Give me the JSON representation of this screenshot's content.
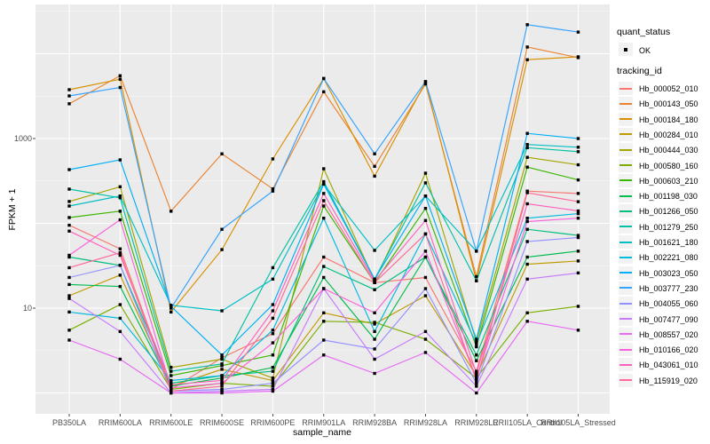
{
  "axes": {
    "y_title": "FPKM + 1",
    "x_title": "sample_name",
    "y_ticks": [
      {
        "label": "1000",
        "value": 1000
      },
      {
        "label": "10",
        "value": 10
      }
    ]
  },
  "legend": {
    "quant_status_title": "quant_status",
    "quant_status_items": [
      {
        "label": "OK",
        "marker": "black-point"
      }
    ],
    "tracking_title": "tracking_id"
  },
  "style": {
    "panel_bg": "#EBEBEB",
    "grid_color": "#FFFFFF",
    "tick_color": "#333333",
    "point_color": "#000000",
    "legend_key_bg": "#F2F2F2"
  },
  "chart_data": {
    "type": "line",
    "title": "",
    "xlabel": "sample_name",
    "ylabel": "FPKM + 1",
    "yscale": "log10",
    "ylim": [
      1,
      30000
    ],
    "grid": "white major+minor on gray panel",
    "legend_position": "right",
    "marker": "small black square on every point",
    "categories": [
      "PB350LA",
      "RRIM600LA",
      "RRIM600LE",
      "RRIM600SE",
      "RRIM600PE",
      "RRIM901LA",
      "RRIM928BA",
      "RRIM928LA",
      "RRIM928LE",
      "RRII105LA_Control",
      "RRII105LA_Stressed"
    ],
    "series": [
      {
        "name": "Hb_000052_010",
        "color": "#F8766D",
        "values": [
          95,
          50,
          1.1,
          2.6,
          5.0,
          40,
          20,
          23,
          1.8,
          240,
          225
        ]
      },
      {
        "name": "Hb_000143_050",
        "color": "#EA8331",
        "values": [
          2570,
          5500,
          139,
          660,
          255,
          3560,
          470,
          4400,
          23.5,
          12000,
          9000
        ]
      },
      {
        "name": "Hb_000184_180",
        "color": "#D89000",
        "values": [
          3765,
          5000,
          9.0,
          49,
          575,
          5100,
          360,
          4600,
          21,
          8500,
          9200
        ]
      },
      {
        "name": "Hb_000284_010",
        "color": "#C09B00",
        "values": [
          14,
          24.5,
          1.2,
          1.9,
          1.4,
          8.8,
          6.5,
          14,
          1.6,
          33,
          36
        ]
      },
      {
        "name": "Hb_000444_030",
        "color": "#A3A500",
        "values": [
          181,
          270,
          2.0,
          2.5,
          1.5,
          440,
          21,
          390,
          4.0,
          600,
          490
        ]
      },
      {
        "name": "Hb_000580_160",
        "color": "#7CAE00",
        "values": [
          5.5,
          11,
          1.1,
          1.3,
          1.2,
          7.0,
          6.8,
          4.3,
          1.5,
          8.8,
          10.5
        ]
      },
      {
        "name": "Hb_000603_210",
        "color": "#39B600",
        "values": [
          117,
          139,
          1.6,
          2.1,
          2.8,
          160,
          20,
          150,
          3.5,
          460,
          325
        ]
      },
      {
        "name": "Hb_001198_030",
        "color": "#00BB4E",
        "values": [
          19,
          18,
          1.2,
          1.5,
          2.0,
          23,
          4.3,
          40,
          2.4,
          40,
          47
        ]
      },
      {
        "name": "Hb_001266_050",
        "color": "#00BF7D",
        "values": [
          40,
          32,
          1.3,
          1.6,
          1.8,
          31,
          16.5,
          40,
          2.8,
          85,
          72
        ]
      },
      {
        "name": "Hb_001279_250",
        "color": "#00C1A3",
        "values": [
          253,
          200,
          1.8,
          2.2,
          30,
          310,
          22,
          300,
          21,
          780,
          700
        ]
      },
      {
        "name": "Hb_001621_180",
        "color": "#00BFC4",
        "values": [
          160,
          210,
          10.8,
          9.3,
          22,
          290,
          48,
          210,
          47,
          850,
          790
        ]
      },
      {
        "name": "Hb_002221_080",
        "color": "#00BAE0",
        "values": [
          9.0,
          7.6,
          1.4,
          1.6,
          5.5,
          115,
          5.3,
          75,
          3.8,
          115,
          130
        ]
      },
      {
        "name": "Hb_003023_050",
        "color": "#00B0F6",
        "values": [
          430,
          560,
          10.5,
          2.8,
          11,
          290,
          22,
          210,
          4.3,
          1150,
          1000
        ]
      },
      {
        "name": "Hb_003777_230",
        "color": "#35A2FF",
        "values": [
          3180,
          4000,
          10.0,
          85,
          240,
          5100,
          660,
          4700,
          47,
          22000,
          18000
        ]
      },
      {
        "name": "Hb_004055_060",
        "color": "#9590FF",
        "values": [
          23,
          32,
          1.05,
          1.1,
          1.3,
          4.2,
          3.3,
          17,
          1.3,
          61,
          68
        ]
      },
      {
        "name": "Hb_007477_090",
        "color": "#C77CFF",
        "values": [
          13,
          5.3,
          1.0,
          1.05,
          1.1,
          17,
          2.5,
          5.3,
          1.2,
          22,
          26
        ]
      },
      {
        "name": "Hb_008557_020",
        "color": "#E76BF3",
        "values": [
          4.2,
          2.5,
          1.0,
          1.0,
          1.05,
          2.8,
          1.7,
          3.0,
          1.0,
          7.0,
          5.5
        ]
      },
      {
        "name": "Hb_010166_020",
        "color": "#FA62DB",
        "values": [
          42,
          110,
          1.15,
          1.3,
          3.9,
          17,
          8.8,
          47,
          1.5,
          105,
          115
        ]
      },
      {
        "name": "Hb_043061_010",
        "color": "#FF62BC",
        "values": [
          81,
          42,
          1.25,
          1.4,
          9.3,
          225,
          21,
          108,
          1.7,
          170,
          140
        ]
      },
      {
        "name": "Hb_115919_020",
        "color": "#FF6A98",
        "values": [
          30,
          45,
          1.05,
          1.2,
          7.6,
          185,
          20,
          75,
          1.4,
          230,
          180
        ]
      }
    ]
  }
}
